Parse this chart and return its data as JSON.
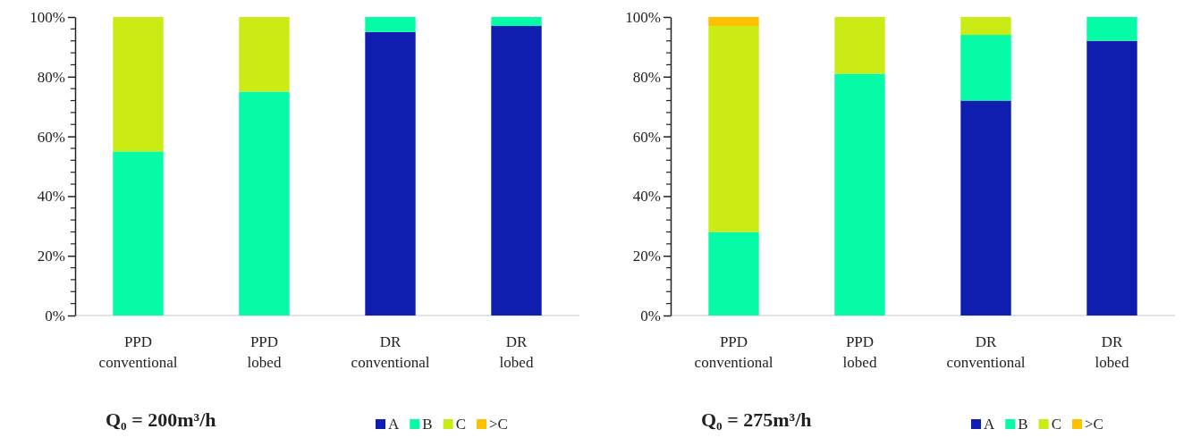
{
  "chart_data": [
    {
      "type": "bar",
      "title": "Q₀ = 200m³/h",
      "stacked": true,
      "legend": "bottom right",
      "categories": [
        "PPD conventional",
        "PPD lobed",
        "DR conventional",
        "DR lobed"
      ],
      "series": [
        {
          "name": "A",
          "color": "#0f1eaf",
          "values": [
            0,
            0,
            95,
            97
          ]
        },
        {
          "name": "B",
          "color": "#05fba5",
          "values": [
            55,
            75,
            5,
            3
          ]
        },
        {
          "name": "C",
          "color": "#cbeb14",
          "values": [
            45,
            25,
            0,
            0
          ]
        },
        {
          "name": ">C",
          "color": "#ffc000",
          "values": [
            0,
            0,
            0,
            0
          ]
        }
      ],
      "ylim": [
        0,
        100
      ],
      "yticks": [
        {
          "value": 0,
          "label": "0%"
        },
        {
          "value": 20,
          "label": "20%"
        },
        {
          "value": 40,
          "label": "40%"
        },
        {
          "value": 60,
          "label": "60%"
        },
        {
          "value": 80,
          "label": "80%"
        },
        {
          "value": 100,
          "label": "100%"
        }
      ]
    },
    {
      "type": "bar",
      "title": "Q₀ = 275m³/h",
      "stacked": true,
      "legend": "bottom right",
      "categories": [
        "PPD conventional",
        "PPD lobed",
        "DR conventional",
        "DR lobed"
      ],
      "series": [
        {
          "name": "A",
          "color": "#0f1eaf",
          "values": [
            0,
            0,
            72,
            92
          ]
        },
        {
          "name": "B",
          "color": "#05fba5",
          "values": [
            28,
            81,
            22,
            8
          ]
        },
        {
          "name": "C",
          "color": "#cbeb14",
          "values": [
            69,
            19,
            6,
            0
          ]
        },
        {
          "name": ">C",
          "color": "#ffc000",
          "values": [
            3,
            0,
            0,
            0
          ]
        }
      ],
      "ylim": [
        0,
        100
      ],
      "yticks": [
        {
          "value": 0,
          "label": "0%"
        },
        {
          "value": 20,
          "label": "20%"
        },
        {
          "value": 40,
          "label": "40%"
        },
        {
          "value": 60,
          "label": "60%"
        },
        {
          "value": 80,
          "label": "80%"
        },
        {
          "value": 100,
          "label": "100%"
        }
      ]
    }
  ]
}
